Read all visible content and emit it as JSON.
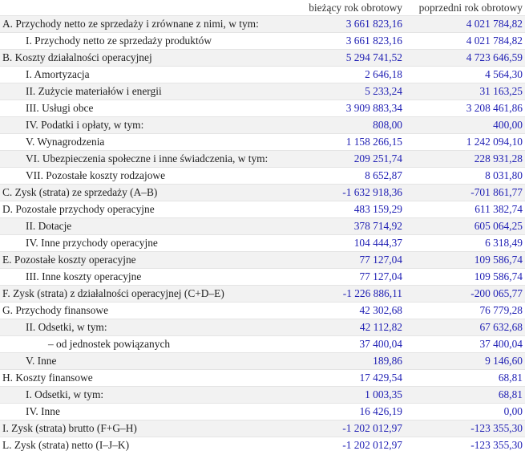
{
  "table": {
    "headers": {
      "label": "",
      "current": "bieżący rok obrotowy",
      "previous": "poprzedni rok obrotowy"
    },
    "rows": [
      {
        "label": "A. Przychody netto ze sprzedaży i zrównane z nimi, w tym:",
        "level": 0,
        "current": "3 661 823,16",
        "previous": "4 021 784,82"
      },
      {
        "label": "I. Przychody netto ze sprzedaży produktów",
        "level": 1,
        "current": "3 661 823,16",
        "previous": "4 021 784,82"
      },
      {
        "label": "B. Koszty działalności operacyjnej",
        "level": 0,
        "current": "5 294 741,52",
        "previous": "4 723 646,59"
      },
      {
        "label": "I. Amortyzacja",
        "level": 1,
        "current": "2 646,18",
        "previous": "4 564,30"
      },
      {
        "label": "II. Zużycie materiałów i energii",
        "level": 1,
        "current": "5 233,24",
        "previous": "31 163,25"
      },
      {
        "label": "III. Usługi obce",
        "level": 1,
        "current": "3 909 883,34",
        "previous": "3 208 461,86"
      },
      {
        "label": "IV. Podatki i opłaty, w tym:",
        "level": 1,
        "current": "808,00",
        "previous": "400,00"
      },
      {
        "label": "V. Wynagrodzenia",
        "level": 1,
        "current": "1 158 266,15",
        "previous": "1 242 094,10"
      },
      {
        "label": "VI. Ubezpieczenia społeczne i inne świadczenia, w tym:",
        "level": 1,
        "current": "209 251,74",
        "previous": "228 931,28"
      },
      {
        "label": "VII. Pozostałe koszty rodzajowe",
        "level": 1,
        "current": "8 652,87",
        "previous": "8 031,80"
      },
      {
        "label": "C. Zysk (strata) ze sprzedaży (A–B)",
        "level": 0,
        "current": "-1 632 918,36",
        "previous": "-701 861,77"
      },
      {
        "label": "D. Pozostałe przychody operacyjne",
        "level": 0,
        "current": "483 159,29",
        "previous": "611 382,74"
      },
      {
        "label": "II. Dotacje",
        "level": 1,
        "current": "378 714,92",
        "previous": "605 064,25"
      },
      {
        "label": "IV. Inne przychody operacyjne",
        "level": 1,
        "current": "104 444,37",
        "previous": "6 318,49"
      },
      {
        "label": "E. Pozostałe koszty operacyjne",
        "level": 0,
        "current": "77 127,04",
        "previous": "109 586,74"
      },
      {
        "label": "III. Inne koszty operacyjne",
        "level": 1,
        "current": "77 127,04",
        "previous": "109 586,74"
      },
      {
        "label": "F. Zysk (strata) z działalności operacyjnej (C+D–E)",
        "level": 0,
        "current": "-1 226 886,11",
        "previous": "-200 065,77"
      },
      {
        "label": "G. Przychody finansowe",
        "level": 0,
        "current": "42 302,68",
        "previous": "76 779,28"
      },
      {
        "label": "II. Odsetki, w tym:",
        "level": 1,
        "current": "42 112,82",
        "previous": "67 632,68"
      },
      {
        "label": "– od jednostek powiązanych",
        "level": 2,
        "current": "37 400,04",
        "previous": "37 400,04"
      },
      {
        "label": "V. Inne",
        "level": 1,
        "current": "189,86",
        "previous": "9 146,60"
      },
      {
        "label": "H. Koszty finansowe",
        "level": 0,
        "current": "17 429,54",
        "previous": "68,81"
      },
      {
        "label": "I. Odsetki, w tym:",
        "level": 1,
        "current": "1 003,35",
        "previous": "68,81"
      },
      {
        "label": "IV. Inne",
        "level": 1,
        "current": "16 426,19",
        "previous": "0,00"
      },
      {
        "label": "I. Zysk (strata) brutto (F+G–H)",
        "level": 0,
        "current": "-1 202 012,97",
        "previous": "-123 355,30"
      },
      {
        "label": "L. Zysk (strata) netto (I–J–K)",
        "level": 0,
        "current": "-1 202 012,97",
        "previous": "-123 355,30"
      }
    ]
  }
}
